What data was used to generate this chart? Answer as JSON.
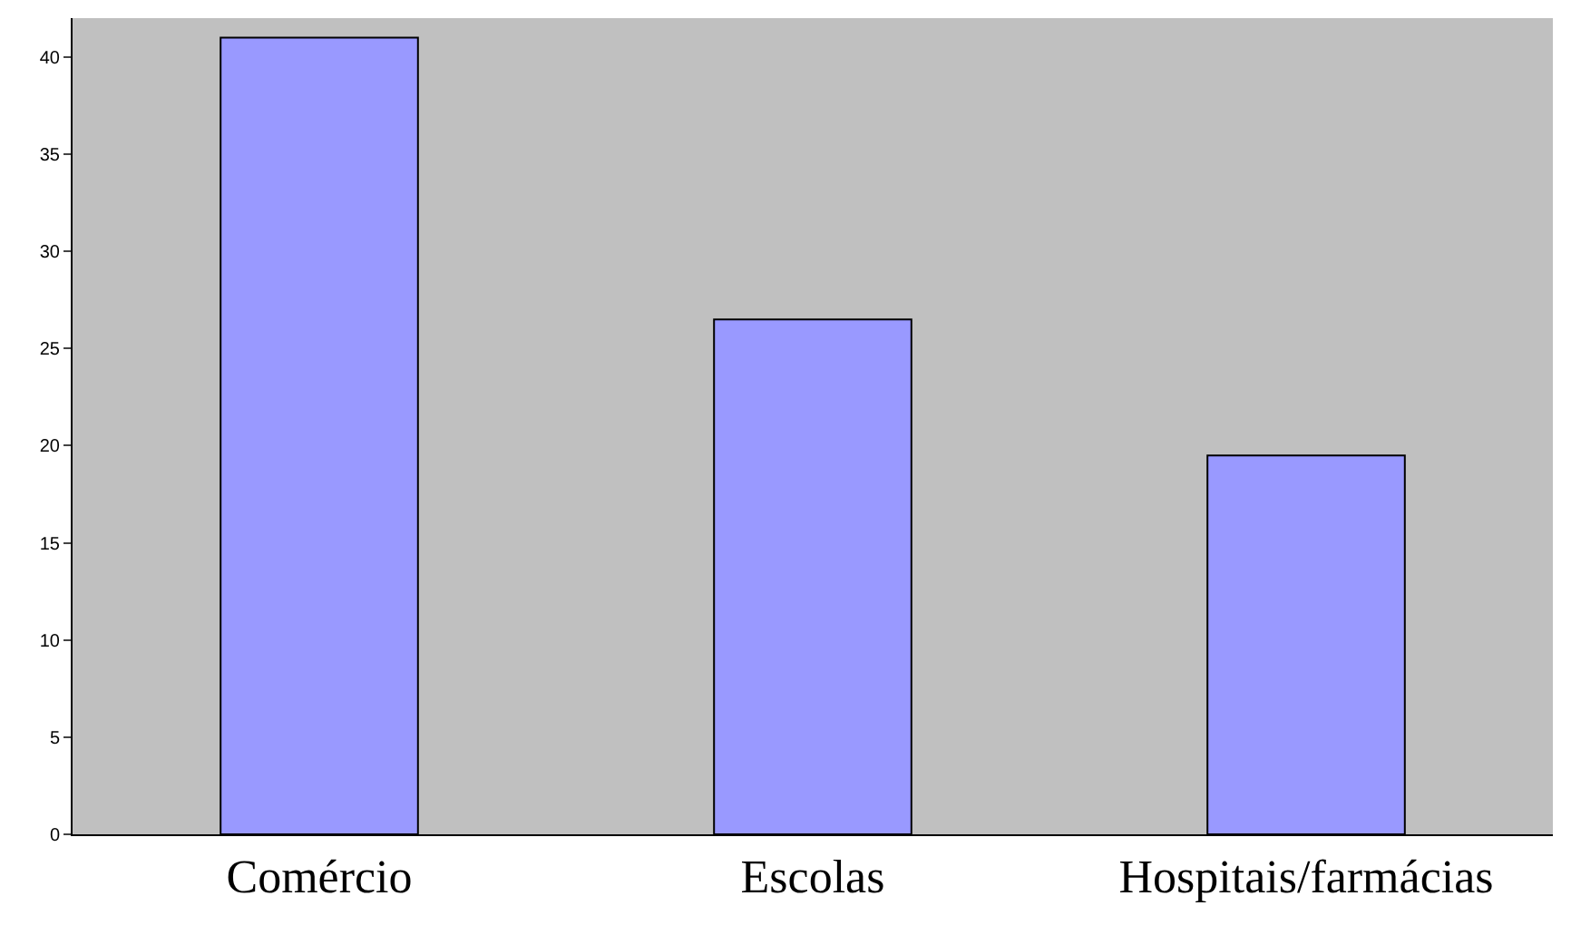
{
  "chart_data": {
    "type": "bar",
    "categories": [
      "Comércio",
      "Escolas",
      "Hospitais/farmácias"
    ],
    "values": [
      41,
      26.5,
      19.5
    ],
    "color": "#9999ff",
    "ylim": [
      0,
      42
    ],
    "yticks": [
      0,
      5,
      10,
      15,
      20,
      25,
      30,
      35,
      40
    ],
    "grid": false,
    "legend": false
  }
}
